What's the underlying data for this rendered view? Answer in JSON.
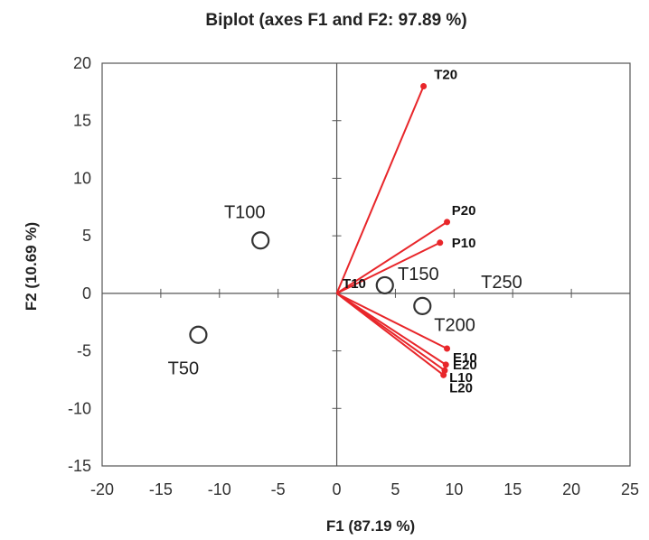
{
  "chart_data": {
    "type": "scatter",
    "subtype": "biplot",
    "title": "Biplot (axes F1 and F2: 97.89 %)",
    "xlabel": "F1 (87.19 %)",
    "ylabel": "F2 (10.69 %)",
    "xlim": [
      -20,
      25
    ],
    "ylim": [
      -15,
      20
    ],
    "xticks": [
      -20,
      -15,
      -10,
      -5,
      0,
      5,
      10,
      15,
      20,
      25
    ],
    "yticks": [
      -15,
      -10,
      -5,
      0,
      5,
      10,
      15,
      20
    ],
    "grid": false,
    "legend": "none",
    "colors": {
      "vectors": "#e8262a",
      "observations": "#333333",
      "frame": "#555555"
    },
    "observations": [
      {
        "label": "T50",
        "x": -11.8,
        "y": -3.6
      },
      {
        "label": "T100",
        "x": -6.5,
        "y": 4.6
      },
      {
        "label": "T150",
        "x": 4.1,
        "y": 0.7
      },
      {
        "label": "T200",
        "x": 7.3,
        "y": -1.1
      },
      {
        "label": "T250",
        "x": 12.5,
        "y": 1.4
      },
      {
        "label": "T10",
        "x": 1.8,
        "y": 0.9
      }
    ],
    "variables": [
      {
        "label": "T20",
        "x": 7.4,
        "y": 18.0
      },
      {
        "label": "P20",
        "x": 9.4,
        "y": 6.2
      },
      {
        "label": "P10",
        "x": 8.8,
        "y": 4.4
      },
      {
        "label": "E10",
        "x": 9.4,
        "y": -4.8
      },
      {
        "label": "E20",
        "x": 9.3,
        "y": -6.2
      },
      {
        "label": "L10",
        "x": 9.2,
        "y": -6.7
      },
      {
        "label": "L20",
        "x": 9.1,
        "y": -7.1
      }
    ]
  }
}
